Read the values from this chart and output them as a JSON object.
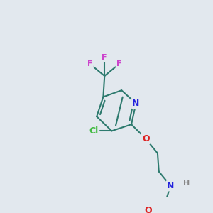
{
  "background_color": "#e2e8ee",
  "bond_color": "#2d7a6e",
  "atom_colors": {
    "F": "#cc44cc",
    "Cl": "#44bb44",
    "N": "#2222dd",
    "O": "#dd2222",
    "C": "#2d7a6e",
    "H": "#888888"
  },
  "bond_width": 1.5,
  "font_size": 9,
  "font_size_small": 8
}
